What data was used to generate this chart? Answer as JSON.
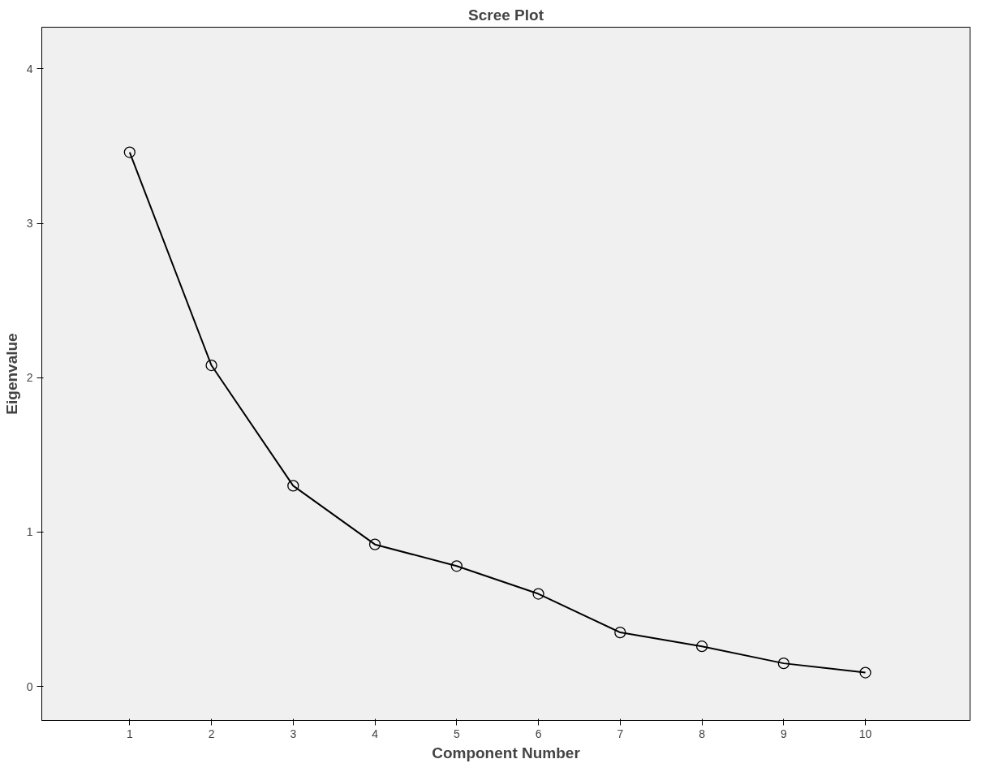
{
  "chart_data": {
    "type": "line",
    "title": "Scree Plot",
    "xlabel": "Component Number",
    "ylabel": "Eigenvalue",
    "categories": [
      "1",
      "2",
      "3",
      "4",
      "5",
      "6",
      "7",
      "8",
      "9",
      "10"
    ],
    "series": [
      {
        "color": "#000000",
        "values": [
          3.46,
          2.08,
          1.3,
          0.92,
          0.78,
          0.6,
          0.35,
          0.26,
          0.15,
          0.09
        ]
      }
    ],
    "ylim": [
      -0.22,
      4.27
    ],
    "yticks": [
      0,
      1,
      2,
      3,
      4
    ],
    "marker": "circle",
    "line_style": "solid",
    "grid": false
  }
}
